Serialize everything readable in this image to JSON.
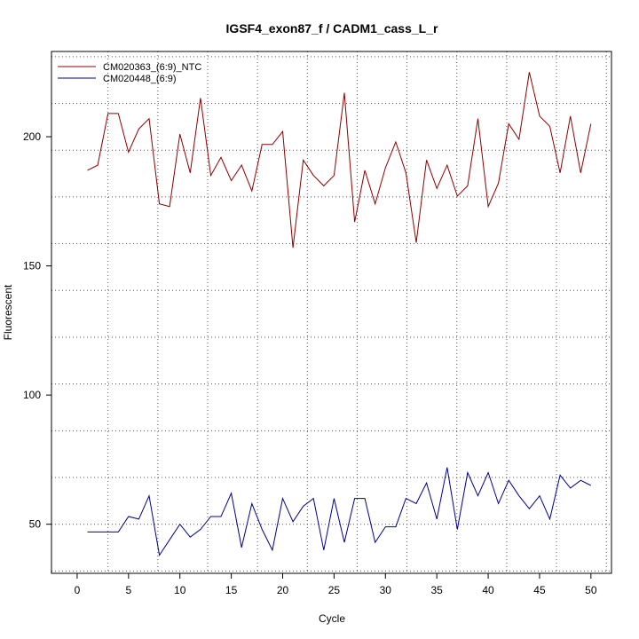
{
  "chart_data": {
    "type": "line",
    "title": "IGSF4_exon87_f / CADM1_cass_L_r",
    "xlabel": "Cycle",
    "ylabel": "Fluorescent",
    "xlim": [
      -2.5,
      52
    ],
    "ylim": [
      31,
      233
    ],
    "x_ticks": [
      0,
      5,
      10,
      15,
      20,
      25,
      30,
      35,
      40,
      45,
      50
    ],
    "y_ticks": [
      50,
      100,
      150,
      200
    ],
    "grid": true,
    "legend_position": "top-left",
    "x": [
      1,
      2,
      3,
      4,
      5,
      6,
      7,
      8,
      9,
      10,
      11,
      12,
      13,
      14,
      15,
      16,
      17,
      18,
      19,
      20,
      21,
      22,
      23,
      24,
      25,
      26,
      27,
      28,
      29,
      30,
      31,
      32,
      33,
      34,
      35,
      36,
      37,
      38,
      39,
      40,
      41,
      42,
      43,
      44,
      45,
      46,
      47,
      48,
      49,
      50
    ],
    "series": [
      {
        "name": "CM020363_(6:9)_NTC",
        "color": "#8b0000",
        "values": [
          187,
          189,
          209,
          209,
          194,
          203,
          207,
          174,
          173,
          201,
          186,
          215,
          185,
          192,
          183,
          189,
          179,
          197,
          197,
          202,
          157,
          191,
          185,
          181,
          185,
          217,
          167,
          187,
          174,
          188,
          198,
          186,
          159,
          191,
          180,
          189,
          177,
          181,
          207,
          173,
          182,
          205,
          199,
          225,
          208,
          204,
          186,
          208,
          186,
          205
        ]
      },
      {
        "name": "CM020448_(6:9)",
        "color": "#00008b",
        "values": [
          47,
          47,
          47,
          47,
          53,
          52,
          61,
          38,
          44,
          50,
          45,
          48,
          53,
          53,
          62,
          41,
          58,
          48,
          40,
          60,
          51,
          57,
          60,
          40,
          60,
          43,
          60,
          60,
          43,
          49,
          49,
          60,
          58,
          66,
          52,
          72,
          48,
          70,
          61,
          70,
          58,
          67,
          61,
          56,
          61,
          52,
          69,
          64,
          67,
          65
        ]
      }
    ]
  }
}
